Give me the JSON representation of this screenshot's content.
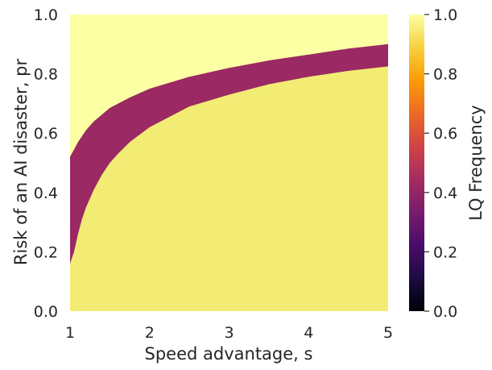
{
  "chart_data": {
    "type": "heatmap",
    "xlabel": "Speed advantage, s",
    "ylabel": "Risk of an AI disaster, pr",
    "xlim": [
      1,
      5
    ],
    "ylim": [
      0,
      1
    ],
    "x_ticks": [
      "1",
      "2",
      "3",
      "4",
      "5"
    ],
    "y_ticks": [
      "0.0",
      "0.2",
      "0.4",
      "0.6",
      "0.8",
      "1.0"
    ],
    "colorbar": {
      "label": "LQ Frequency",
      "range": [
        0,
        1
      ],
      "ticks": [
        "0.0",
        "0.2",
        "0.4",
        "0.6",
        "0.8",
        "1.0"
      ],
      "colormap": "inferno",
      "colormap_stops": [
        "#000004",
        "#1b0c41",
        "#4a0c6b",
        "#781c6d",
        "#a52c60",
        "#cf4446",
        "#ed6925",
        "#fb9b06",
        "#f7d13d",
        "#fcffa4"
      ]
    },
    "grid": false,
    "regions": [
      {
        "value": 1.0,
        "color": "#fcffa4",
        "where": "pr above upper boundary"
      },
      {
        "value": 0.42,
        "color": "#9a2964",
        "where": "between boundaries"
      },
      {
        "value": 0.95,
        "color": "#f2ec74",
        "where": "pr below lower boundary"
      }
    ],
    "upper_boundary": {
      "s": [
        1.0,
        1.1,
        1.2,
        1.3,
        1.5,
        1.75,
        2.0,
        2.5,
        3.0,
        3.5,
        4.0,
        4.5,
        5.0
      ],
      "pr": [
        0.52,
        0.57,
        0.61,
        0.64,
        0.685,
        0.72,
        0.75,
        0.79,
        0.82,
        0.845,
        0.865,
        0.885,
        0.9
      ]
    },
    "lower_boundary": {
      "s": [
        1.0,
        1.05,
        1.1,
        1.15,
        1.2,
        1.3,
        1.4,
        1.5,
        1.6,
        1.75,
        2.0,
        2.5,
        3.0,
        3.5,
        4.0,
        4.5,
        5.0
      ],
      "pr": [
        0.16,
        0.2,
        0.26,
        0.31,
        0.35,
        0.41,
        0.46,
        0.5,
        0.53,
        0.57,
        0.62,
        0.69,
        0.73,
        0.765,
        0.79,
        0.81,
        0.825
      ]
    }
  }
}
